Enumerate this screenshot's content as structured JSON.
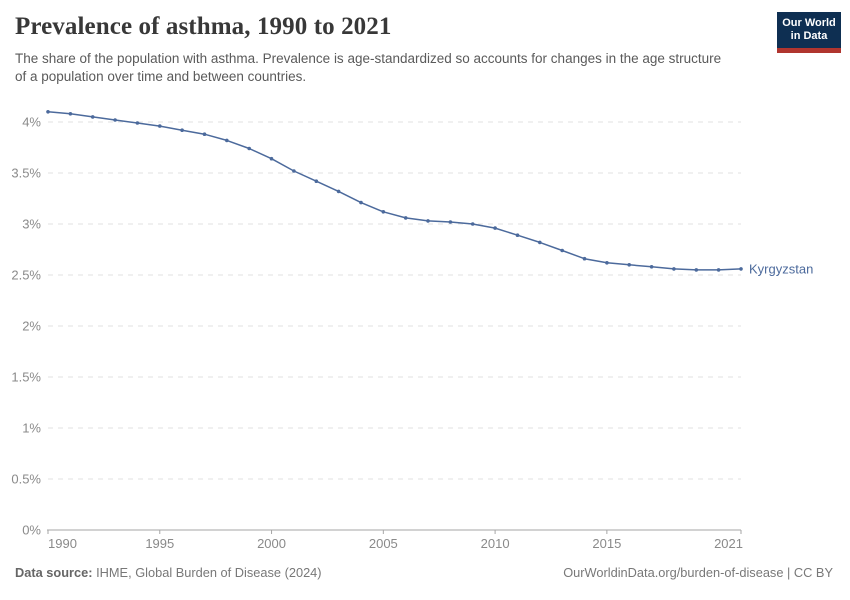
{
  "header": {
    "title": "Prevalence of asthma, 1990 to 2021",
    "subtitle": "The share of the population with asthma. Prevalence is age-standardized so accounts for changes in the age structure of a population over time and between countries."
  },
  "logo": {
    "line1": "Our World",
    "line2": "in Data",
    "bg_color": "#0e2f52",
    "accent_color": "#b0352f"
  },
  "chart_data": {
    "type": "line",
    "title": "Prevalence of asthma, 1990 to 2021",
    "xlabel": "",
    "ylabel": "",
    "grid": "horizontal-dashed",
    "legend_position": "end-of-line-label",
    "xlim": [
      1990,
      2021
    ],
    "ylim": [
      0,
      4.35
    ],
    "x_ticks": [
      1990,
      1995,
      2000,
      2005,
      2010,
      2015,
      2021
    ],
    "y_ticks": [
      0,
      0.5,
      1,
      1.5,
      2,
      2.5,
      3,
      3.5,
      4
    ],
    "y_tick_labels": [
      "0%",
      "0.5%",
      "1%",
      "1.5%",
      "2%",
      "2.5%",
      "3%",
      "3.5%",
      "4%"
    ],
    "series": [
      {
        "name": "Kyrgyzstan",
        "color": "#4c6a9c",
        "x": [
          1990,
          1991,
          1992,
          1993,
          1994,
          1995,
          1996,
          1997,
          1998,
          1999,
          2000,
          2001,
          2002,
          2003,
          2004,
          2005,
          2006,
          2007,
          2008,
          2009,
          2010,
          2011,
          2012,
          2013,
          2014,
          2015,
          2016,
          2017,
          2018,
          2019,
          2020,
          2021
        ],
        "values": [
          4.1,
          4.08,
          4.05,
          4.02,
          3.99,
          3.96,
          3.92,
          3.88,
          3.82,
          3.74,
          3.64,
          3.52,
          3.42,
          3.32,
          3.21,
          3.12,
          3.06,
          3.03,
          3.02,
          3.0,
          2.96,
          2.89,
          2.82,
          2.74,
          2.66,
          2.62,
          2.6,
          2.58,
          2.56,
          2.55,
          2.55,
          2.56
        ]
      }
    ],
    "colors": {
      "gridline": "#e0e0e0",
      "axis": "#a6a6a6",
      "tick_text": "#8a8a8a"
    }
  },
  "footer": {
    "source_label": "Data source:",
    "source_text": " IHME, Global Burden of Disease (2024)",
    "credit": "OurWorldinData.org/burden-of-disease | CC BY"
  }
}
